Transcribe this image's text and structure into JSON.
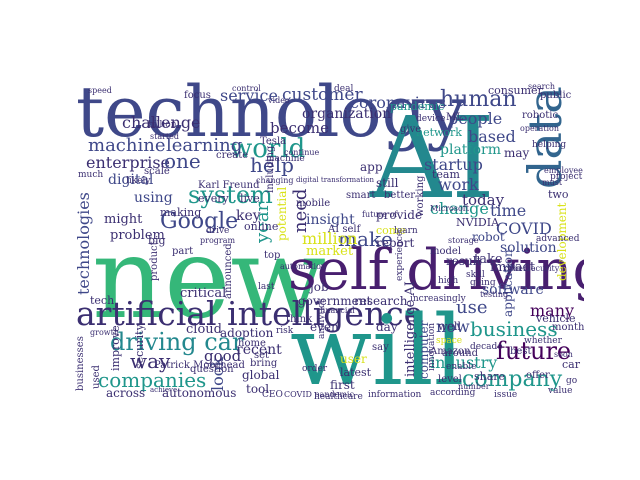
{
  "palette": {
    "navy": "#3b2f71",
    "indigo": "#3f4889",
    "blue": "#32658e",
    "teal": "#23888e",
    "sea": "#1f968b",
    "green": "#35b779",
    "lime": "#7ad151",
    "yellow": "#d8e219",
    "purple": "#481f6f",
    "deep": "#44015a"
  },
  "words": [
    {
      "id": "technology",
      "text": "technology"
    },
    {
      "id": "data",
      "text": "data"
    },
    {
      "id": "ai",
      "text": "AI"
    },
    {
      "id": "new",
      "text": "new"
    },
    {
      "id": "self-driving",
      "text": "self driving"
    },
    {
      "id": "artificial-intelligence",
      "text": "artificial intelligence"
    },
    {
      "id": "will",
      "text": "will"
    },
    {
      "id": "driving-car",
      "text": "driving car"
    },
    {
      "id": "companies",
      "text": "companies"
    },
    {
      "id": "company",
      "text": "company"
    },
    {
      "id": "business",
      "text": "business"
    },
    {
      "id": "future",
      "text": "future"
    },
    {
      "id": "human",
      "text": "human"
    },
    {
      "id": "world",
      "text": "world"
    },
    {
      "id": "system",
      "text": "system"
    },
    {
      "id": "google",
      "text": "Google"
    },
    {
      "id": "technologies",
      "text": "technologies"
    },
    {
      "id": "machine",
      "text": "machine"
    },
    {
      "id": "learning",
      "text": "learning"
    },
    {
      "id": "challenge",
      "text": "challenge"
    },
    {
      "id": "service",
      "text": "service"
    },
    {
      "id": "customer",
      "text": "customer"
    },
    {
      "id": "coronavirus",
      "text": "coronavirus"
    },
    {
      "id": "people",
      "text": "people"
    },
    {
      "id": "based",
      "text": "based"
    },
    {
      "id": "enterprise",
      "text": "enterprise"
    },
    {
      "id": "one",
      "text": "one"
    },
    {
      "id": "help",
      "text": "help"
    },
    {
      "id": "need",
      "text": "need"
    },
    {
      "id": "year",
      "text": "year"
    },
    {
      "id": "make",
      "text": "make"
    },
    {
      "id": "million",
      "text": "million"
    },
    {
      "id": "use",
      "text": "use"
    },
    {
      "id": "change",
      "text": "change"
    },
    {
      "id": "work",
      "text": "work"
    },
    {
      "id": "today",
      "text": "today"
    },
    {
      "id": "time",
      "text": "time"
    },
    {
      "id": "covid",
      "text": "COVID"
    },
    {
      "id": "startup",
      "text": "startup"
    },
    {
      "id": "platform",
      "text": "platform"
    },
    {
      "id": "digital",
      "text": "digital"
    },
    {
      "id": "using",
      "text": "using"
    },
    {
      "id": "way",
      "text": "way"
    },
    {
      "id": "look",
      "text": "look"
    },
    {
      "id": "good",
      "text": "good"
    },
    {
      "id": "many",
      "text": "many"
    },
    {
      "id": "solution",
      "text": "solution"
    },
    {
      "id": "software",
      "text": "software"
    },
    {
      "id": "industry",
      "text": "industry"
    },
    {
      "id": "now",
      "text": "now"
    },
    {
      "id": "problem",
      "text": "problem"
    },
    {
      "id": "recent",
      "text": "recent"
    },
    {
      "id": "cloud",
      "text": "cloud"
    },
    {
      "id": "might",
      "text": "might"
    },
    {
      "id": "insight",
      "text": "insight"
    },
    {
      "id": "market",
      "text": "market"
    },
    {
      "id": "impact",
      "text": "impact"
    },
    {
      "id": "take",
      "text": "take"
    },
    {
      "id": "robot",
      "text": "robot"
    },
    {
      "id": "report",
      "text": "report"
    },
    {
      "id": "become",
      "text": "become"
    },
    {
      "id": "organization",
      "text": "organization"
    },
    {
      "id": "research",
      "text": "research"
    },
    {
      "id": "government",
      "text": "government"
    },
    {
      "id": "application",
      "text": "application"
    },
    {
      "id": "development",
      "text": "development"
    },
    {
      "id": "intelligence-ai",
      "text": "intelligence AI"
    },
    {
      "id": "computer",
      "text": "computer"
    },
    {
      "id": "potential",
      "text": "potential"
    },
    {
      "id": "key",
      "text": "key"
    },
    {
      "id": "critical",
      "text": "critical"
    },
    {
      "id": "global",
      "text": "global"
    },
    {
      "id": "autonomous",
      "text": "autonomous"
    },
    {
      "id": "across",
      "text": "across"
    },
    {
      "id": "adoption",
      "text": "adoption"
    },
    {
      "id": "first",
      "text": "first"
    },
    {
      "id": "user",
      "text": "user"
    },
    {
      "id": "vehicle",
      "text": "vehicle"
    },
    {
      "id": "tech",
      "text": "tech"
    },
    {
      "id": "tool",
      "text": "tool"
    },
    {
      "id": "job",
      "text": "job"
    },
    {
      "id": "even",
      "text": "even"
    },
    {
      "id": "well",
      "text": "well"
    },
    {
      "id": "share",
      "text": "share"
    },
    {
      "id": "still",
      "text": "still"
    },
    {
      "id": "provide",
      "text": "provide"
    },
    {
      "id": "result",
      "text": "result"
    },
    {
      "id": "app",
      "text": "app"
    },
    {
      "id": "team",
      "text": "team"
    },
    {
      "id": "network",
      "text": "network"
    },
    {
      "id": "pandemic",
      "text": "pandemic"
    },
    {
      "id": "consumer",
      "text": "consumer"
    },
    {
      "id": "may",
      "text": "may"
    },
    {
      "id": "two",
      "text": "two"
    },
    {
      "id": "day",
      "text": "day"
    },
    {
      "id": "amazon",
      "text": "Amazon"
    },
    {
      "id": "improve",
      "text": "improve"
    },
    {
      "id": "security",
      "text": "security"
    },
    {
      "id": "patrick-moorhead",
      "text": "Patrick Moorhead"
    },
    {
      "id": "karl-freund",
      "text": "Karl Freund"
    },
    {
      "id": "nvidia",
      "text": "NVIDIA"
    },
    {
      "id": "making",
      "text": "making"
    },
    {
      "id": "online",
      "text": "online"
    },
    {
      "id": "every",
      "text": "every"
    },
    {
      "id": "live",
      "text": "live"
    },
    {
      "id": "big",
      "text": "big"
    },
    {
      "id": "mobile",
      "text": "mobile"
    },
    {
      "id": "smart",
      "text": "smart"
    },
    {
      "id": "better",
      "text": "better"
    },
    {
      "id": "come",
      "text": "come"
    },
    {
      "id": "latest",
      "text": "latest"
    },
    {
      "id": "healthcare",
      "text": "healthcare"
    },
    {
      "id": "information",
      "text": "information"
    },
    {
      "id": "according",
      "text": "according"
    },
    {
      "id": "issue",
      "text": "issue"
    },
    {
      "id": "value",
      "text": "value"
    },
    {
      "id": "car",
      "text": "car"
    },
    {
      "id": "offer",
      "text": "offer"
    },
    {
      "id": "month",
      "text": "month"
    },
    {
      "id": "level",
      "text": "level"
    },
    {
      "id": "model",
      "text": "model"
    },
    {
      "id": "businesses",
      "text": "businesses"
    },
    {
      "id": "used",
      "text": "used"
    },
    {
      "id": "create",
      "text": "create"
    },
    {
      "id": "focus",
      "text": "focus"
    },
    {
      "id": "tesla",
      "text": "Tesla"
    },
    {
      "id": "including",
      "text": "including"
    },
    {
      "id": "robotic",
      "text": "robotic"
    },
    {
      "id": "public",
      "text": "public"
    },
    {
      "id": "give",
      "text": "give"
    },
    {
      "id": "set",
      "text": "set"
    },
    {
      "id": "bring",
      "text": "bring"
    },
    {
      "id": "home",
      "text": "home"
    },
    {
      "id": "think",
      "text": "think"
    },
    {
      "id": "working",
      "text": "working"
    },
    {
      "id": "enable",
      "text": "enable"
    },
    {
      "id": "around",
      "text": "around"
    },
    {
      "id": "scale",
      "text": "scale"
    },
    {
      "id": "question",
      "text": "question"
    },
    {
      "id": "top",
      "text": "top"
    },
    {
      "id": "part",
      "text": "part"
    },
    {
      "id": "product",
      "text": "product"
    },
    {
      "id": "experience",
      "text": "experience"
    },
    {
      "id": "innovation",
      "text": "innovation"
    },
    {
      "id": "increasingly",
      "text": "increasingly"
    },
    {
      "id": "helping",
      "text": "helping"
    },
    {
      "id": "advanced",
      "text": "advanced"
    },
    {
      "id": "project",
      "text": "project"
    },
    {
      "id": "whether",
      "text": "whether"
    },
    {
      "id": "covid-pandemic",
      "text": "COVID pandemic"
    },
    {
      "id": "cybersecurity",
      "text": "cybersecurity"
    },
    {
      "id": "ai-self",
      "text": "AI self"
    },
    {
      "id": "ml",
      "text": "ML"
    },
    {
      "id": "say",
      "text": "say"
    },
    {
      "id": "best",
      "text": "best"
    },
    {
      "id": "announced",
      "text": "announced"
    },
    {
      "id": "ceo",
      "text": "CEO"
    },
    {
      "id": "analytics",
      "text": "analytics"
    },
    {
      "id": "much",
      "text": "much"
    },
    {
      "id": "likely",
      "text": "likely"
    },
    {
      "id": "billion",
      "text": "billion"
    },
    {
      "id": "future-of",
      "text": "future of"
    },
    {
      "id": "digital-transformation",
      "text": "digital transformation"
    },
    {
      "id": "microsoft",
      "text": "Microsoft"
    },
    {
      "id": "device",
      "text": "device"
    },
    {
      "id": "decade",
      "text": "decade"
    },
    {
      "id": "space",
      "text": "space"
    },
    {
      "id": "risk",
      "text": "risk"
    },
    {
      "id": "learn",
      "text": "learn"
    },
    {
      "id": "skill",
      "text": "skill"
    },
    {
      "id": "high",
      "text": "high"
    },
    {
      "id": "going",
      "text": "going"
    },
    {
      "id": "order",
      "text": "order"
    },
    {
      "id": "employee",
      "text": "employee"
    },
    {
      "id": "soon",
      "text": "soon"
    },
    {
      "id": "go",
      "text": "go"
    },
    {
      "id": "must",
      "text": "must"
    },
    {
      "id": "growth",
      "text": "growth"
    },
    {
      "id": "last",
      "text": "last"
    },
    {
      "id": "drive",
      "text": "drive"
    },
    {
      "id": "program",
      "text": "program"
    },
    {
      "id": "deal",
      "text": "deal"
    },
    {
      "id": "machine2",
      "text": "machine"
    },
    {
      "id": "speed",
      "text": "speed"
    },
    {
      "id": "started",
      "text": "started"
    },
    {
      "id": "continue",
      "text": "continue"
    },
    {
      "id": "changing",
      "text": "changing"
    },
    {
      "id": "automation",
      "text": "automation"
    },
    {
      "id": "storage",
      "text": "storage"
    },
    {
      "id": "number",
      "text": "number"
    },
    {
      "id": "control",
      "text": "control"
    },
    {
      "id": "video",
      "text": "video"
    },
    {
      "id": "search",
      "text": "search"
    },
    {
      "id": "operation",
      "text": "operation"
    },
    {
      "id": "testing",
      "text": "testing"
    },
    {
      "id": "achieve",
      "text": "achieve"
    },
    {
      "id": "financial",
      "text": "financial"
    }
  ]
}
